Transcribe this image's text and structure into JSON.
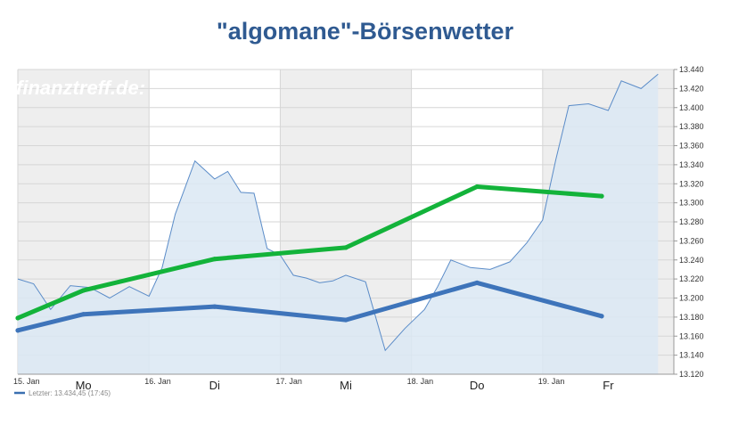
{
  "header": {
    "title": "\"algomane\"-Börsenwetter"
  },
  "watermark": "finanztreff.de:",
  "legend": {
    "label": "Letzter: 13.434,45 (17:45)",
    "color": "#3a6fb0"
  },
  "colors": {
    "area_fill": "#dbe7f3",
    "area_line": "#5b8cc8",
    "green": "#13b33a",
    "blue": "#3e74ba",
    "band": "#eeeeee",
    "grid": "#d6d6d6"
  },
  "chart_data": {
    "type": "line",
    "title": "\"algomane\"-Börsenwetter",
    "xlabel": "",
    "ylabel": "",
    "ylim": [
      13120,
      13440
    ],
    "yticks": [
      "13.120",
      "13.140",
      "13.160",
      "13.180",
      "13.200",
      "13.220",
      "13.240",
      "13.260",
      "13.280",
      "13.300",
      "13.320",
      "13.340",
      "13.360",
      "13.380",
      "13.400",
      "13.420",
      "13.440"
    ],
    "date_ticks": [
      "15. Jan",
      "16. Jan",
      "17. Jan",
      "18. Jan",
      "19. Jan"
    ],
    "day_labels": [
      "Mo",
      "Di",
      "Mi",
      "Do",
      "Fr"
    ],
    "grid": true,
    "shaded_days": [
      "15. Jan",
      "17. Jan",
      "19. Jan"
    ],
    "index": {
      "x": [
        0,
        0.12,
        0.25,
        0.4,
        0.55,
        0.7,
        0.85,
        1.0,
        1.1,
        1.2,
        1.35,
        1.5,
        1.6,
        1.7,
        1.8,
        1.9,
        2.0,
        2.1,
        2.2,
        2.3,
        2.4,
        2.5,
        2.65,
        2.8,
        2.95,
        3.1,
        3.2,
        3.3,
        3.45,
        3.6,
        3.75,
        3.88,
        4.0,
        4.1,
        4.2,
        4.35,
        4.5,
        4.6,
        4.75,
        4.88
      ],
      "values": [
        13220,
        13215,
        13188,
        13213,
        13211,
        13200,
        13212,
        13202,
        13232,
        13288,
        13344,
        13325,
        13333,
        13311,
        13310,
        13252,
        13245,
        13224,
        13221,
        13216,
        13218,
        13224,
        13217,
        13145,
        13168,
        13188,
        13212,
        13240,
        13232,
        13230,
        13238,
        13258,
        13282,
        13345,
        13402,
        13404,
        13397,
        13428,
        13420,
        13435
      ]
    },
    "series": [
      {
        "x": [
          0,
          0.5,
          1.5,
          2.5,
          3.5,
          4.45
        ],
        "values": [
          13179,
          13208,
          13241,
          13253,
          13317,
          13307
        ],
        "color": "#13b33a"
      },
      {
        "x": [
          0,
          0.5,
          1.5,
          2.5,
          3.5,
          4.45
        ],
        "values": [
          13166,
          13183,
          13191,
          13177,
          13216,
          13181
        ],
        "color": "#3e74ba"
      }
    ]
  }
}
